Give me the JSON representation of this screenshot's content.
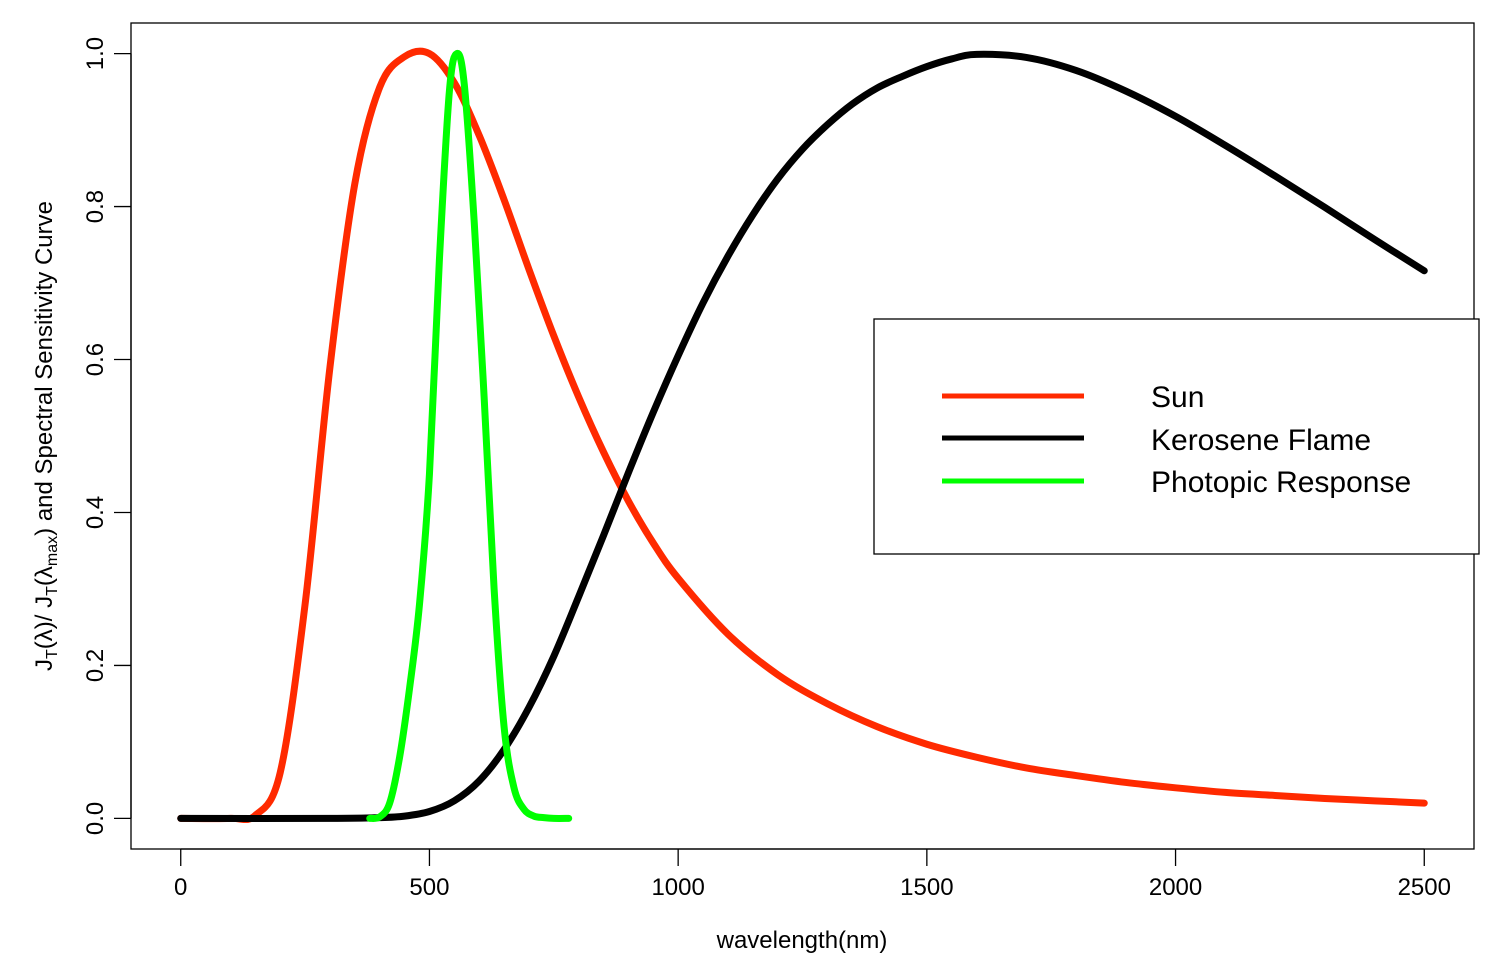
{
  "chart_data": {
    "type": "line",
    "title": "",
    "xlabel": "wavelength(nm)",
    "ylabel": {
      "parts": [
        "J",
        "T",
        "(λ)/ J",
        "T",
        "(λ",
        "max",
        ") and Spectral Sensitivity Curve"
      ]
    },
    "xlim": [
      -100,
      2600
    ],
    "ylim": [
      -0.04,
      1.04
    ],
    "x_ticks": [
      0,
      500,
      1000,
      1500,
      2000,
      2500
    ],
    "x_tick_labels": [
      "0",
      "500",
      "1000",
      "1500",
      "2000",
      "2500"
    ],
    "y_ticks": [
      0.0,
      0.2,
      0.4,
      0.6,
      0.8,
      1.0
    ],
    "y_tick_labels": [
      "0.0",
      "0.2",
      "0.4",
      "0.6",
      "0.8",
      "1.0"
    ],
    "grid": false,
    "legend": {
      "position": "right",
      "box": true
    },
    "series": [
      {
        "name": "Sun",
        "color": "#ff2a00",
        "x": [
          0,
          100,
          150,
          200,
          250,
          300,
          350,
          400,
          450,
          500,
          550,
          600,
          650,
          700,
          750,
          800,
          850,
          900,
          950,
          1000,
          1100,
          1200,
          1300,
          1400,
          1500,
          1600,
          1700,
          1800,
          1900,
          2000,
          2100,
          2200,
          2300,
          2400,
          2500
        ],
        "values": [
          0.0,
          0.0,
          0.004,
          0.06,
          0.28,
          0.59,
          0.83,
          0.956,
          0.996,
          1.0,
          0.962,
          0.893,
          0.809,
          0.718,
          0.631,
          0.551,
          0.479,
          0.415,
          0.36,
          0.314,
          0.241,
          0.188,
          0.15,
          0.12,
          0.097,
          0.08,
          0.066,
          0.056,
          0.047,
          0.04,
          0.034,
          0.03,
          0.026,
          0.023,
          0.02
        ]
      },
      {
        "name": "Kerosene Flame",
        "color": "#000000",
        "x": [
          0,
          300,
          400,
          450,
          500,
          550,
          600,
          650,
          700,
          750,
          800,
          850,
          900,
          950,
          1000,
          1050,
          1100,
          1150,
          1200,
          1250,
          1300,
          1350,
          1400,
          1450,
          1500,
          1550,
          1600,
          1700,
          1800,
          1900,
          2000,
          2100,
          2200,
          2300,
          2400,
          2500
        ],
        "values": [
          0.0,
          0.0,
          0.001,
          0.003,
          0.009,
          0.023,
          0.049,
          0.09,
          0.145,
          0.212,
          0.29,
          0.37,
          0.452,
          0.531,
          0.605,
          0.674,
          0.735,
          0.789,
          0.836,
          0.875,
          0.907,
          0.934,
          0.955,
          0.97,
          0.983,
          0.993,
          0.999,
          0.995,
          0.978,
          0.951,
          0.918,
          0.88,
          0.84,
          0.799,
          0.757,
          0.716
        ]
      },
      {
        "name": "Photopic Response",
        "color": "#00ff00",
        "x": [
          380,
          400,
          420,
          440,
          460,
          480,
          500,
          520,
          540,
          555,
          570,
          590,
          610,
          630,
          650,
          670,
          690,
          710,
          730,
          750,
          780
        ],
        "values": [
          0.0,
          0.002,
          0.02,
          0.08,
          0.17,
          0.28,
          0.45,
          0.73,
          0.95,
          1.0,
          0.96,
          0.78,
          0.55,
          0.3,
          0.12,
          0.04,
          0.012,
          0.003,
          0.001,
          0.0,
          0.0
        ]
      }
    ]
  }
}
